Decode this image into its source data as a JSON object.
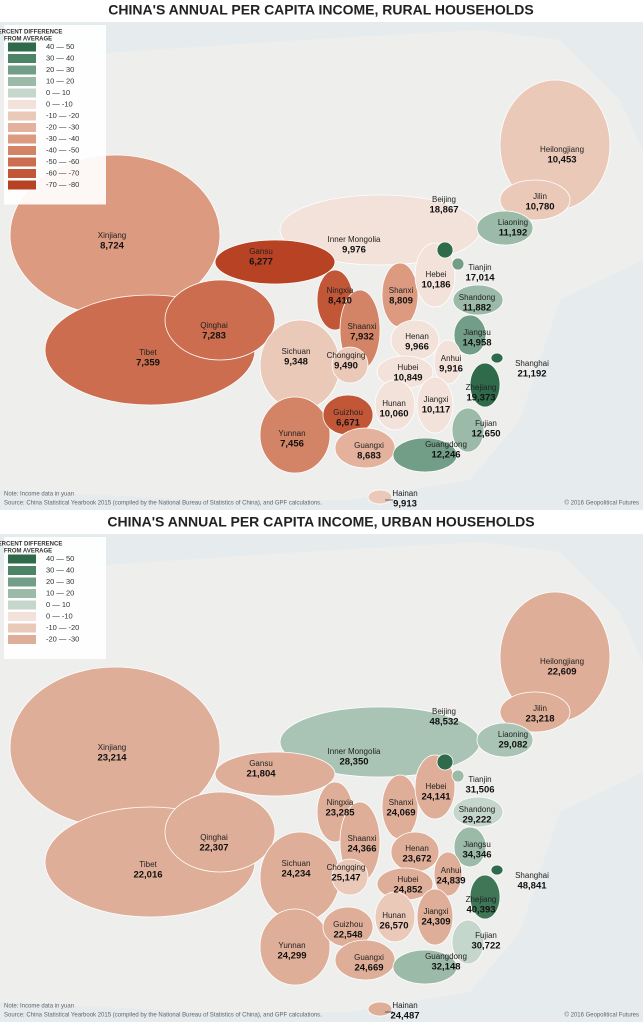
{
  "maps": [
    {
      "title": "CHINA'S ANNUAL PER CAPITA INCOME, RURAL HOUSEHOLDS",
      "legend_title": [
        "PERCENT DIFFERENCE",
        "FROM AVERAGE"
      ],
      "legend": [
        {
          "label": "40 — 50",
          "color": "#2f6b4a"
        },
        {
          "label": "30 — 40",
          "color": "#4d8465"
        },
        {
          "label": "20 — 30",
          "color": "#729d86"
        },
        {
          "label": "10 — 20",
          "color": "#9bbaa8"
        },
        {
          "label": "0 — 10",
          "color": "#c5d6cc"
        },
        {
          "label": "0 — -10",
          "color": "#f3e2d9"
        },
        {
          "label": "-10 — -20",
          "color": "#ebc9b9"
        },
        {
          "label": "-20 — -30",
          "color": "#e4b29c"
        },
        {
          "label": "-30 — -40",
          "color": "#dc9a80"
        },
        {
          "label": "-40 — -50",
          "color": "#d38366"
        },
        {
          "label": "-50 — -60",
          "color": "#cb6d4e"
        },
        {
          "label": "-60 — -70",
          "color": "#c25738"
        },
        {
          "label": "-70 — -80",
          "color": "#b84224"
        }
      ],
      "provinces": [
        {
          "name": "Xinjiang",
          "value": "8,724",
          "color": "#dc9a80"
        },
        {
          "name": "Tibet",
          "value": "7,359",
          "color": "#cb6d4e"
        },
        {
          "name": "Inner Mongolia",
          "value": "9,976",
          "color": "#f3e2d9"
        },
        {
          "name": "Heilongjiang",
          "value": "10,453",
          "color": "#ebc9b9"
        },
        {
          "name": "Qinghai",
          "value": "7,283",
          "color": "#cb6d4e"
        },
        {
          "name": "Gansu",
          "value": "6,277",
          "color": "#b84224"
        },
        {
          "name": "Sichuan",
          "value": "9,348",
          "color": "#ebc9b9"
        },
        {
          "name": "Yunnan",
          "value": "7,456",
          "color": "#d38366"
        },
        {
          "name": "Jilin",
          "value": "10,780",
          "color": "#ebc9b9"
        },
        {
          "name": "Liaoning",
          "value": "11,192",
          "color": "#9bbaa8"
        },
        {
          "name": "Ningxia",
          "value": "8,410",
          "color": "#c25738"
        },
        {
          "name": "Shaanxi",
          "value": "7,932",
          "color": "#d38366"
        },
        {
          "name": "Shanxi",
          "value": "8,809",
          "color": "#dc9a80"
        },
        {
          "name": "Hebei",
          "value": "10,186",
          "color": "#f3e2d9"
        },
        {
          "name": "Beijing",
          "value": "18,867",
          "color": "#2f6b4a"
        },
        {
          "name": "Tianjin",
          "value": "17,014",
          "color": "#729d86"
        },
        {
          "name": "Shandong",
          "value": "11,882",
          "color": "#9bbaa8"
        },
        {
          "name": "Henan",
          "value": "9,966",
          "color": "#f3e2d9"
        },
        {
          "name": "Jiangsu",
          "value": "14,958",
          "color": "#729d86"
        },
        {
          "name": "Anhui",
          "value": "9,916",
          "color": "#f3e2d9"
        },
        {
          "name": "Hubei",
          "value": "10,849",
          "color": "#f3e2d9"
        },
        {
          "name": "Chongqing",
          "value": "9,490",
          "color": "#ebc9b9"
        },
        {
          "name": "Guizhou",
          "value": "6,671",
          "color": "#c25738"
        },
        {
          "name": "Hunan",
          "value": "10,060",
          "color": "#f3e2d9"
        },
        {
          "name": "Jiangxi",
          "value": "10,117",
          "color": "#f3e2d9"
        },
        {
          "name": "Zhejiang",
          "value": "19,373",
          "color": "#2f6b4a"
        },
        {
          "name": "Shanghai",
          "value": "21,192",
          "color": "#2f6b4a"
        },
        {
          "name": "Fujian",
          "value": "12,650",
          "color": "#9bbaa8"
        },
        {
          "name": "Guangxi",
          "value": "8,683",
          "color": "#e4b29c"
        },
        {
          "name": "Guangdong",
          "value": "12,246",
          "color": "#729d86"
        },
        {
          "name": "Hainan",
          "value": "9,913",
          "color": "#ebc9b9"
        }
      ],
      "note": "Note: Income data in yuan",
      "source": "Source: China Statistical Yearbook 2015 (compiled by the National Bureau of Statistics of China), and GPF calculations.",
      "credit": "© 2016 Geopolitical Futures"
    },
    {
      "title": "CHINA'S ANNUAL PER CAPITA INCOME, URBAN HOUSEHOLDS",
      "legend_title": [
        "PERCENT DIFFERENCE",
        "FROM AVERAGE"
      ],
      "legend": [
        {
          "label": "40 — 50",
          "color": "#2f6b4a"
        },
        {
          "label": "30 — 40",
          "color": "#4d8465"
        },
        {
          "label": "20 — 30",
          "color": "#729d86"
        },
        {
          "label": "10 — 20",
          "color": "#9bbaa8"
        },
        {
          "label": "0 — 10",
          "color": "#c5d6cc"
        },
        {
          "label": "0 — -10",
          "color": "#f3e2d9"
        },
        {
          "label": "-10 — -20",
          "color": "#ebc9b9"
        },
        {
          "label": "-20 — -30",
          "color": "#dfae98"
        }
      ],
      "provinces": [
        {
          "name": "Xinjiang",
          "value": "23,214",
          "color": "#dfae98"
        },
        {
          "name": "Tibet",
          "value": "22,016",
          "color": "#dfae98"
        },
        {
          "name": "Inner Mongolia",
          "value": "28,350",
          "color": "#a9c4b4"
        },
        {
          "name": "Heilongjiang",
          "value": "22,609",
          "color": "#dfae98"
        },
        {
          "name": "Qinghai",
          "value": "22,307",
          "color": "#dfae98"
        },
        {
          "name": "Gansu",
          "value": "21,804",
          "color": "#dfae98"
        },
        {
          "name": "Sichuan",
          "value": "24,234",
          "color": "#dfae98"
        },
        {
          "name": "Yunnan",
          "value": "24,299",
          "color": "#dfae98"
        },
        {
          "name": "Jilin",
          "value": "23,218",
          "color": "#dfae98"
        },
        {
          "name": "Liaoning",
          "value": "29,082",
          "color": "#a9c4b4"
        },
        {
          "name": "Ningxia",
          "value": "23,285",
          "color": "#dfae98"
        },
        {
          "name": "Shaanxi",
          "value": "24,366",
          "color": "#dfae98"
        },
        {
          "name": "Shanxi",
          "value": "24,069",
          "color": "#dfae98"
        },
        {
          "name": "Hebei",
          "value": "24,141",
          "color": "#dfae98"
        },
        {
          "name": "Beijing",
          "value": "48,532",
          "color": "#2f6b4a"
        },
        {
          "name": "Tianjin",
          "value": "31,506",
          "color": "#9bbaa8"
        },
        {
          "name": "Shandong",
          "value": "29,222",
          "color": "#c5d6cc"
        },
        {
          "name": "Henan",
          "value": "23,672",
          "color": "#dfae98"
        },
        {
          "name": "Jiangsu",
          "value": "34,346",
          "color": "#9bbaa8"
        },
        {
          "name": "Anhui",
          "value": "24,839",
          "color": "#dfae98"
        },
        {
          "name": "Hubei",
          "value": "24,852",
          "color": "#dfae98"
        },
        {
          "name": "Chongqing",
          "value": "25,147",
          "color": "#ebc9b9"
        },
        {
          "name": "Guizhou",
          "value": "22,548",
          "color": "#dfae98"
        },
        {
          "name": "Hunan",
          "value": "26,570",
          "color": "#ebc9b9"
        },
        {
          "name": "Jiangxi",
          "value": "24,309",
          "color": "#dfae98"
        },
        {
          "name": "Zhejiang",
          "value": "40,393",
          "color": "#3f7756"
        },
        {
          "name": "Shanghai",
          "value": "48,841",
          "color": "#2f6b4a"
        },
        {
          "name": "Fujian",
          "value": "30,722",
          "color": "#c5d6cc"
        },
        {
          "name": "Guangxi",
          "value": "24,669",
          "color": "#dfae98"
        },
        {
          "name": "Guangdong",
          "value": "32,148",
          "color": "#9bbaa8"
        },
        {
          "name": "Hainan",
          "value": "24,487",
          "color": "#dfae98"
        }
      ],
      "note": "Note: Income data in yuan",
      "source": "Source: China Statistical Yearbook 2015 (compiled by the National Bureau of Statistics of China), and GPF calculations.",
      "credit": "© 2016 Geopolitical Futures"
    }
  ]
}
